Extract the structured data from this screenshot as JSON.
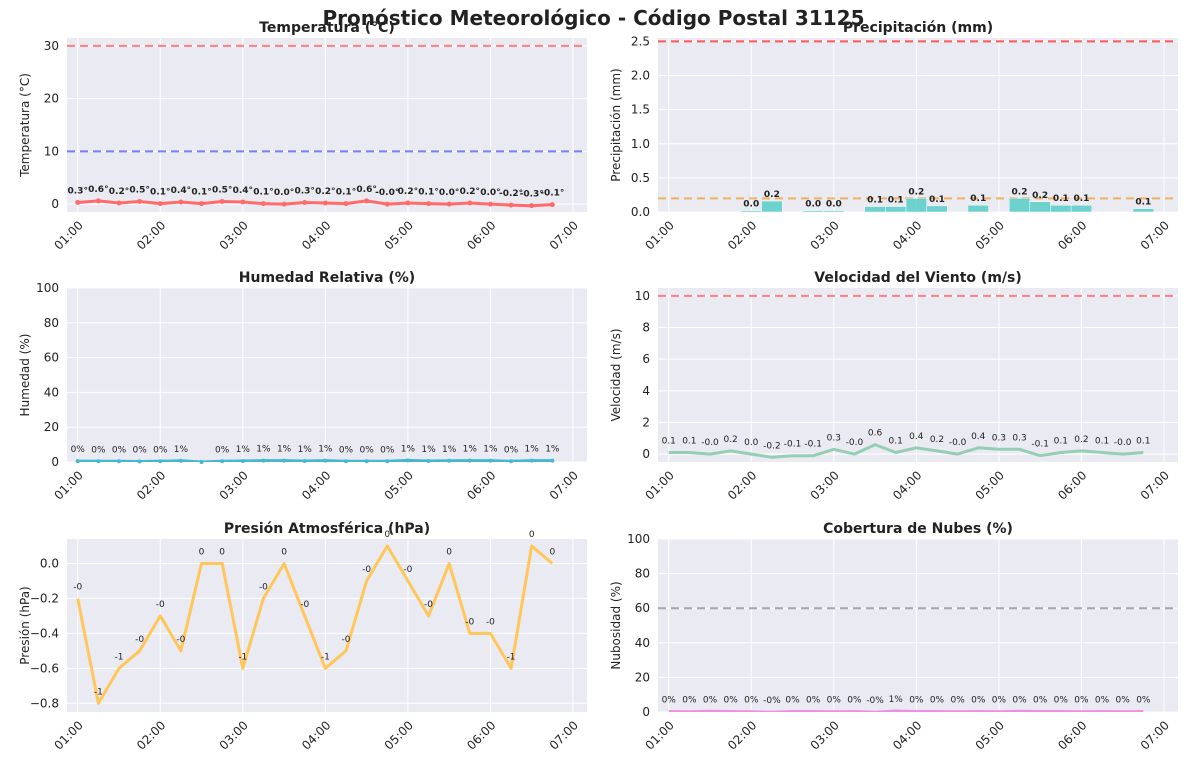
{
  "page": {
    "title": "Pronóstico Meteorológico - Código Postal 31125"
  },
  "chart_data": [
    {
      "id": "temp",
      "type": "line",
      "title": "Temperatura (°C)",
      "ylabel": "Temperatura (°C)",
      "xlabel": "",
      "ylim": [
        -1.5,
        31.5
      ],
      "yticks": [
        0,
        10,
        20,
        30
      ],
      "xlim": [
        0.87,
        7.17
      ],
      "xticks": [
        "01:00",
        "02:00",
        "03:00",
        "04:00",
        "05:00",
        "06:00",
        "07:00"
      ],
      "grid": true,
      "color": "#ff6b6b",
      "hlines": [
        {
          "y": 30,
          "color": "#ff6b6b"
        },
        {
          "y": 10,
          "color": "#5b6ef5"
        }
      ],
      "x": [
        1.0,
        1.25,
        1.5,
        1.75,
        2.0,
        2.25,
        2.5,
        2.75,
        3.0,
        3.25,
        3.5,
        3.75,
        4.0,
        4.25,
        4.5,
        4.75,
        5.0,
        5.25,
        5.5,
        5.75,
        6.0,
        6.25,
        6.5,
        6.75,
        7.0
      ],
      "values": [
        0.3,
        0.6,
        0.2,
        0.5,
        0.1,
        0.4,
        0.1,
        0.5,
        0.4,
        0.1,
        0.0,
        0.3,
        0.2,
        0.1,
        0.6,
        -0.0,
        0.2,
        0.1,
        0.0,
        0.2,
        0.0,
        -0.2,
        -0.3,
        -0.1,
        null
      ],
      "labels": [
        "0.3°",
        "0.6°",
        "0.2°",
        "0.5°",
        "0.1°",
        "0.4°",
        "0.1°",
        "0.5°",
        "0.4°",
        "0.1°",
        "0.0°",
        "0.3°",
        "0.2°",
        "0.1°",
        "0.6°",
        "-0.0°",
        "0.2°",
        "0.1°",
        "0.0°",
        "0.2°",
        "0.0°",
        "-0.2°",
        "-0.3°",
        "-0.1°",
        ""
      ]
    },
    {
      "id": "precip",
      "type": "bar",
      "title": "Precipitación (mm)",
      "ylabel": "Precipitación (mm)",
      "xlabel": "",
      "ylim": [
        0,
        2.55
      ],
      "yticks": [
        0.0,
        0.5,
        1.0,
        1.5,
        2.0,
        2.5
      ],
      "xlim": [
        0.87,
        7.17
      ],
      "xticks": [
        "01:00",
        "02:00",
        "03:00",
        "04:00",
        "05:00",
        "06:00",
        "07:00"
      ],
      "grid": true,
      "color": "#4ecdc4",
      "hlines": [
        {
          "y": 2.5,
          "color": "#ff3b3b"
        },
        {
          "y": 0.2,
          "color": "#f5a742"
        }
      ],
      "x": [
        2.0,
        2.25,
        2.75,
        3.0,
        3.5,
        3.75,
        4.0,
        4.25,
        4.75,
        5.25,
        5.5,
        5.75,
        6.0,
        6.75
      ],
      "values": [
        0.02,
        0.16,
        0.02,
        0.02,
        0.08,
        0.08,
        0.2,
        0.09,
        0.1,
        0.2,
        0.15,
        0.1,
        0.1,
        0.05
      ],
      "labels": [
        "0.0",
        "0.2",
        "0.0",
        "0.0",
        "0.1",
        "0.1",
        "0.2",
        "0.1",
        "0.1",
        "0.2",
        "0.2",
        "0.1",
        "0.1",
        "0.1"
      ]
    },
    {
      "id": "hum",
      "type": "line",
      "title": "Humedad Relativa (%)",
      "ylabel": "Humedad (%)",
      "xlabel": "",
      "ylim": [
        0,
        100
      ],
      "yticks": [
        0,
        20,
        40,
        60,
        80,
        100
      ],
      "xlim": [
        0.87,
        7.17
      ],
      "xticks": [
        "01:00",
        "02:00",
        "03:00",
        "04:00",
        "05:00",
        "06:00",
        "07:00"
      ],
      "grid": true,
      "color": "#45b7d1",
      "hlines": [],
      "x": [
        1.0,
        1.25,
        1.5,
        1.75,
        2.0,
        2.25,
        2.5,
        2.75,
        3.0,
        3.25,
        3.5,
        3.75,
        4.0,
        4.25,
        4.5,
        4.75,
        5.0,
        5.25,
        5.5,
        5.75,
        6.0,
        6.25,
        6.5,
        6.75,
        7.0
      ],
      "values": [
        0.5,
        0.4,
        0.4,
        0.3,
        0.4,
        0.7,
        0,
        0.4,
        0.6,
        0.8,
        0.8,
        0.6,
        0.8,
        0.4,
        0.4,
        0.4,
        0.9,
        0.6,
        0.7,
        0.8,
        0.8,
        0.4,
        0.8,
        0.8,
        null
      ],
      "labels": [
        "0%",
        "0%",
        "0%",
        "0%",
        "0%",
        "1%",
        "",
        "0%",
        "1%",
        "1%",
        "1%",
        "1%",
        "1%",
        "0%",
        "0%",
        "0%",
        "1%",
        "1%",
        "1%",
        "1%",
        "1%",
        "0%",
        "1%",
        "1%",
        ""
      ]
    },
    {
      "id": "wind",
      "type": "line",
      "title": "Velocidad del Viento (m/s)",
      "ylabel": "Velocidad (m/s)",
      "xlabel": "",
      "ylim": [
        -0.5,
        10.5
      ],
      "yticks": [
        0,
        2,
        4,
        6,
        8,
        10
      ],
      "xlim": [
        0.87,
        7.17
      ],
      "xticks": [
        "01:00",
        "02:00",
        "03:00",
        "04:00",
        "05:00",
        "06:00",
        "07:00"
      ],
      "grid": true,
      "color": "#96ceb4",
      "hlines": [
        {
          "y": 10,
          "color": "#ff6b6b"
        }
      ],
      "x": [
        1.0,
        1.25,
        1.5,
        1.75,
        2.0,
        2.25,
        2.5,
        2.75,
        3.0,
        3.25,
        3.5,
        3.75,
        4.0,
        4.25,
        4.5,
        4.75,
        5.0,
        5.25,
        5.5,
        5.75,
        6.0,
        6.25,
        6.5,
        6.75,
        7.0
      ],
      "values": [
        0.1,
        0.1,
        -0.0,
        0.2,
        0.0,
        -0.2,
        -0.1,
        -0.1,
        0.3,
        -0.0,
        0.6,
        0.1,
        0.4,
        0.2,
        -0.0,
        0.4,
        0.3,
        0.3,
        -0.1,
        0.1,
        0.2,
        0.1,
        -0.0,
        0.1,
        null
      ],
      "labels": [
        "0.1",
        "0.1",
        "-0.0",
        "0.2",
        "0.0",
        "-0.2",
        "-0.1",
        "-0.1",
        "0.3",
        "-0.0",
        "0.6",
        "0.1",
        "0.4",
        "0.2",
        "-0.0",
        "0.4",
        "0.3",
        "0.3",
        "-0.1",
        "0.1",
        "0.2",
        "0.1",
        "-0.0",
        "0.1",
        ""
      ]
    },
    {
      "id": "pres",
      "type": "line",
      "title": "Presión Atmosférica (hPa)",
      "ylabel": "Presión (hPa)",
      "xlabel": "",
      "ylim": [
        -0.85,
        0.14
      ],
      "yticks": [
        -0.8,
        -0.6,
        -0.4,
        -0.2,
        0.0
      ],
      "ytick_labels": [
        "−0.8",
        "−0.6",
        "−0.4",
        "−0.2",
        "0.0"
      ],
      "xlim": [
        0.87,
        7.17
      ],
      "xticks": [
        "01:00",
        "02:00",
        "03:00",
        "04:00",
        "05:00",
        "06:00",
        "07:00"
      ],
      "grid": true,
      "color": "#ffc65a",
      "hlines": [],
      "x": [
        1.0,
        1.25,
        1.5,
        1.75,
        2.0,
        2.25,
        2.5,
        2.75,
        3.0,
        3.25,
        3.5,
        3.75,
        4.0,
        4.25,
        4.5,
        4.75,
        5.0,
        5.25,
        5.5,
        5.75,
        6.0,
        6.25,
        6.5,
        6.75,
        7.0
      ],
      "values": [
        -0.2,
        -0.8,
        -0.6,
        -0.5,
        -0.3,
        -0.5,
        0.0,
        0.0,
        -0.6,
        -0.2,
        0.0,
        -0.3,
        -0.6,
        -0.5,
        -0.1,
        0.1,
        -0.1,
        -0.3,
        0.0,
        -0.4,
        -0.4,
        -0.6,
        0.1,
        0.0,
        null
      ],
      "labels": [
        "-0",
        "-1",
        "-1",
        "-0",
        "-0",
        "-0",
        "0",
        "0",
        "-1",
        "-0",
        "0",
        "-0",
        "-1",
        "-0",
        "-0",
        "0",
        "-0",
        "-0",
        "0",
        "-0",
        "-0",
        "-1",
        "0",
        "0",
        ""
      ]
    },
    {
      "id": "cloud",
      "type": "line",
      "title": "Cobertura de Nubes (%)",
      "ylabel": "Nubosidad (%)",
      "xlabel": "",
      "ylim": [
        0,
        100
      ],
      "yticks": [
        0,
        20,
        40,
        60,
        80,
        100
      ],
      "xlim": [
        0.87,
        7.17
      ],
      "xticks": [
        "01:00",
        "02:00",
        "03:00",
        "04:00",
        "05:00",
        "06:00",
        "07:00"
      ],
      "grid": true,
      "color": "#f08fe0",
      "hlines": [
        {
          "y": 60,
          "color": "#999999"
        }
      ],
      "x": [
        1.0,
        1.25,
        1.5,
        1.75,
        2.0,
        2.25,
        2.5,
        2.75,
        3.0,
        3.25,
        3.5,
        3.75,
        4.0,
        4.25,
        4.5,
        4.75,
        5.0,
        5.25,
        5.5,
        5.75,
        6.0,
        6.25,
        6.5,
        6.75,
        7.0
      ],
      "values": [
        0.3,
        0.2,
        0.4,
        0.3,
        0.2,
        -0.1,
        0.3,
        0.3,
        0.2,
        0.3,
        -0.1,
        0.6,
        0.3,
        0.3,
        0.2,
        0.3,
        0.2,
        0.4,
        0.3,
        0.3,
        0.2,
        0.3,
        0.2,
        0.3,
        null
      ],
      "labels": [
        "0%",
        "0%",
        "0%",
        "0%",
        "0%",
        "-0%",
        "0%",
        "0%",
        "0%",
        "0%",
        "-0%",
        "1%",
        "0%",
        "0%",
        "0%",
        "0%",
        "0%",
        "0%",
        "0%",
        "0%",
        "0%",
        "0%",
        "0%",
        "0%",
        ""
      ]
    }
  ]
}
